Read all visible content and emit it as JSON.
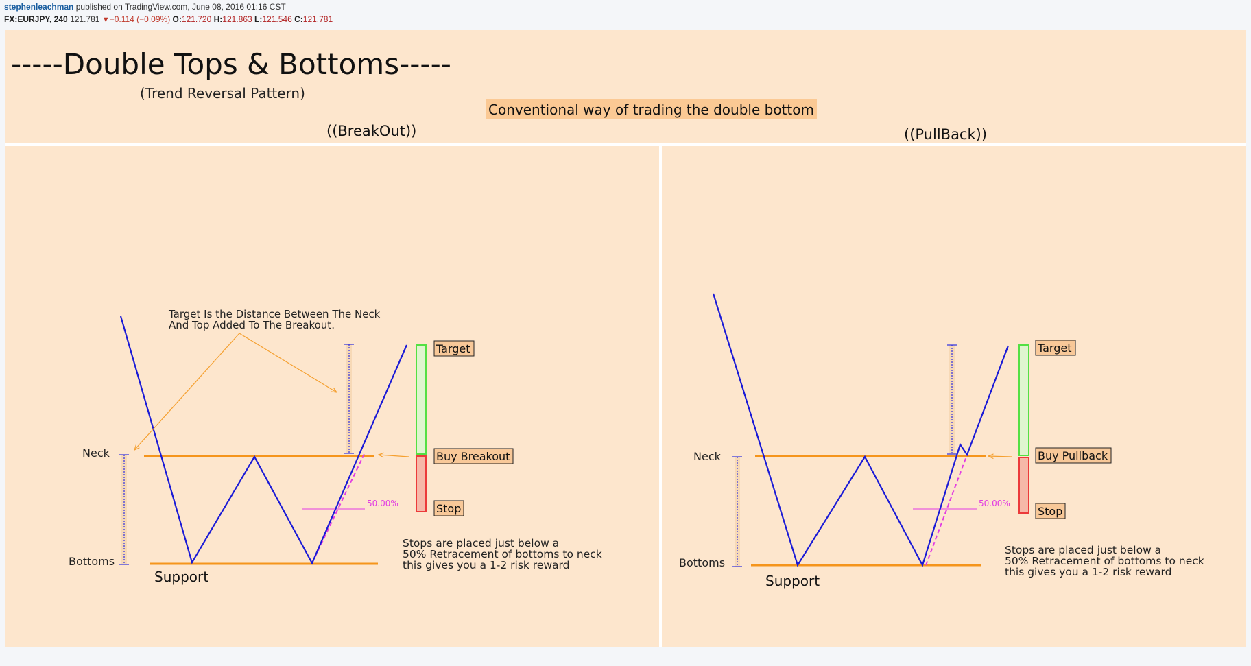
{
  "header": {
    "author": "stephenleachman",
    "published": "published on TradingView.com, June 08, 2016 01:16 CST",
    "symbol": "FX:EURJPY, 240",
    "last": "121.781",
    "change": "−0.114 (−0.09%)",
    "open_label": "O:",
    "open": "121.720",
    "high_label": "H:",
    "high": "121.863",
    "low_label": "L:",
    "low": "121.546",
    "close_label": "C:",
    "close": "121.781"
  },
  "colors": {
    "background": "#fde6cd",
    "pattern_line": "#1a1ad6",
    "level_line": "#f5951c",
    "annotation_arrow": "#f5a030",
    "measure_line": "#2e2ee0",
    "fib_line": "#e23be2",
    "target_box": "#54e044",
    "stop_box": "#ec3a3a",
    "label_bg": "#f8c898",
    "banner_bg": "#fbc994",
    "divider": "#ffffff"
  },
  "chart_data": {
    "type": "line",
    "title": "-----Double Tops & Bottoms-----",
    "subtitle": "(Trend Reversal Pattern)",
    "banner": "Conventional way of trading the double bottom",
    "panels": [
      {
        "id": "breakout",
        "heading": "((BreakOut))",
        "neck_label": "Neck",
        "bottoms_label": "Bottoms",
        "support_label": "Support",
        "target_label": "Target",
        "entry_label": "Buy Breakout",
        "stop_label": "Stop",
        "fib_label": "50.00%",
        "target_note": [
          "Target Is the Distance Between The Neck",
          "And Top Added To The Breakout."
        ],
        "stop_note": [
          "Stops are placed just below a",
          "50% Retracement of bottoms to neck",
          "this gives you a 1-2 risk reward"
        ]
      },
      {
        "id": "pullback",
        "heading": "((PullBack))",
        "neck_label": "Neck",
        "bottoms_label": "Bottoms",
        "support_label": "Support",
        "target_label": "Target",
        "entry_label": "Buy Pullback",
        "stop_label": "Stop",
        "fib_label": "50.00%",
        "stop_note": [
          "Stops are placed just below a",
          "50% Retracement of bottoms to neck",
          "this gives you a 1-2 risk reward"
        ]
      }
    ]
  }
}
